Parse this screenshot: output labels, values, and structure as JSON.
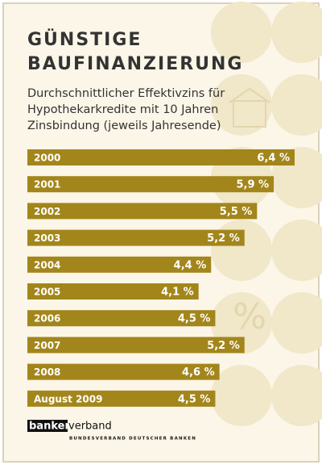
{
  "chart_data": {
    "type": "hbar",
    "title": [
      "GÜNSTIGE",
      "BAUFINANZIERUNG"
    ],
    "subtitle": [
      "Durchschnittlicher Effektivzins für",
      "Hypothekarkredite mit 10 Jahren",
      "Zinsbindung (jeweils Jahresende)"
    ],
    "categories": [
      "2000",
      "2001",
      "2002",
      "2003",
      "2004",
      "2005",
      "2006",
      "2007",
      "2008",
      "August 2009"
    ],
    "values": [
      6.4,
      5.9,
      5.5,
      5.2,
      4.4,
      4.1,
      4.5,
      5.2,
      4.6,
      4.5
    ],
    "value_labels": [
      "6,4 %",
      "5,9 %",
      "5,5 %",
      "5,2 %",
      "4,4 %",
      "4,1 %",
      "4,5 %",
      "5,2 %",
      "4,6 %",
      "4,5 %"
    ],
    "color": "#a3861b",
    "source": {
      "logo": [
        "banken",
        "verband"
      ],
      "org": "BUNDESVERBAND DEUTSCHER BANKEN"
    }
  }
}
